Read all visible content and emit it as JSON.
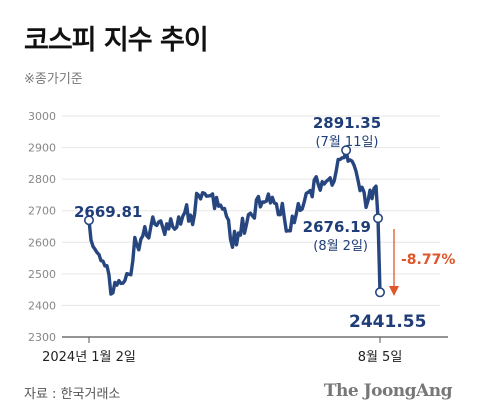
{
  "title": "코스피 지수 추이",
  "subtitle": "※종가기준",
  "source": "자료 : 한국거래소",
  "logo": "The JoongAng",
  "colors": {
    "line": "#27467f",
    "annotation": "#1f3d78",
    "change": "#e0562a",
    "grid": "#e6e6e6"
  },
  "chart_data": {
    "type": "line",
    "ylim": [
      2300,
      3000
    ],
    "yticks": [
      2300,
      2400,
      2500,
      2600,
      2700,
      2800,
      2900,
      3000
    ],
    "xtick_labels": [
      "2024년 1월 2일",
      "8월 5일"
    ],
    "x": [
      "2024-01-02",
      "2024-01-03",
      "2024-01-04",
      "2024-01-05",
      "2024-01-08",
      "2024-01-09",
      "2024-01-10",
      "2024-01-11",
      "2024-01-12",
      "2024-01-15",
      "2024-01-16",
      "2024-01-17",
      "2024-01-18",
      "2024-01-19",
      "2024-01-22",
      "2024-01-23",
      "2024-01-24",
      "2024-01-25",
      "2024-01-26",
      "2024-01-29",
      "2024-01-30",
      "2024-01-31",
      "2024-02-01",
      "2024-02-02",
      "2024-02-05",
      "2024-02-06",
      "2024-02-07",
      "2024-02-08",
      "2024-02-13",
      "2024-02-14",
      "2024-02-15",
      "2024-02-16",
      "2024-02-19",
      "2024-02-20",
      "2024-02-21",
      "2024-02-22",
      "2024-02-23",
      "2024-02-26",
      "2024-02-27",
      "2024-02-28",
      "2024-02-29",
      "2024-03-04",
      "2024-03-05",
      "2024-03-06",
      "2024-03-07",
      "2024-03-08",
      "2024-03-11",
      "2024-03-12",
      "2024-03-13",
      "2024-03-14",
      "2024-03-15",
      "2024-03-18",
      "2024-03-19",
      "2024-03-20",
      "2024-03-21",
      "2024-03-22",
      "2024-03-25",
      "2024-03-26",
      "2024-03-27",
      "2024-03-28",
      "2024-03-29",
      "2024-04-01",
      "2024-04-02",
      "2024-04-03",
      "2024-04-04",
      "2024-04-05",
      "2024-04-08",
      "2024-04-09",
      "2024-04-11",
      "2024-04-12",
      "2024-04-15",
      "2024-04-16",
      "2024-04-17",
      "2024-04-18",
      "2024-04-19",
      "2024-04-22",
      "2024-04-23",
      "2024-04-24",
      "2024-04-25",
      "2024-04-26",
      "2024-04-29",
      "2024-04-30",
      "2024-05-02",
      "2024-05-03",
      "2024-05-07",
      "2024-05-08",
      "2024-05-09",
      "2024-05-10",
      "2024-05-13",
      "2024-05-14",
      "2024-05-16",
      "2024-05-17",
      "2024-05-20",
      "2024-05-21",
      "2024-05-22",
      "2024-05-23",
      "2024-05-24",
      "2024-05-27",
      "2024-05-28",
      "2024-05-29",
      "2024-05-30",
      "2024-05-31",
      "2024-06-03",
      "2024-06-04",
      "2024-06-05",
      "2024-06-07",
      "2024-06-10",
      "2024-06-11",
      "2024-06-12",
      "2024-06-13",
      "2024-06-14",
      "2024-06-17",
      "2024-06-18",
      "2024-06-19",
      "2024-06-20",
      "2024-06-21",
      "2024-06-24",
      "2024-06-25",
      "2024-06-26",
      "2024-06-27",
      "2024-06-28",
      "2024-07-01",
      "2024-07-02",
      "2024-07-03",
      "2024-07-04",
      "2024-07-05",
      "2024-07-08",
      "2024-07-09",
      "2024-07-10",
      "2024-07-11",
      "2024-07-12",
      "2024-07-15",
      "2024-07-16",
      "2024-07-17",
      "2024-07-18",
      "2024-07-19",
      "2024-07-22",
      "2024-07-23",
      "2024-07-24",
      "2024-07-25",
      "2024-07-26",
      "2024-07-29",
      "2024-07-30",
      "2024-07-31",
      "2024-08-01",
      "2024-08-02",
      "2024-08-05"
    ],
    "values": [
      2669.81,
      2607.31,
      2587.02,
      2578.08,
      2567.82,
      2561.24,
      2541.98,
      2540.27,
      2525.05,
      2525.99,
      2497.59,
      2435.9,
      2440.04,
      2472.74,
      2464.35,
      2478.61,
      2469.69,
      2470.34,
      2478.56,
      2500.65,
      2498.81,
      2497.09,
      2542.46,
      2615.31,
      2591.31,
      2576.2,
      2609.58,
      2620.32,
      2649.64,
      2620.42,
      2613.8,
      2648.76,
      2680.26,
      2657.79,
      2653.31,
      2664.27,
      2667.7,
      2647.08,
      2625.05,
      2658.38,
      2642.36,
      2674.27,
      2649.4,
      2641.49,
      2647.62,
      2680.35,
      2657.62,
      2681.81,
      2693.57,
      2718.76,
      2666.84,
      2685.84,
      2656.17,
      2690.14,
      2754.86,
      2748.56,
      2737.57,
      2757.09,
      2755.11,
      2745.82,
      2746.63,
      2747.86,
      2753.16,
      2706.97,
      2742.0,
      2714.21,
      2717.65,
      2705.16,
      2706.96,
      2681.82,
      2670.43,
      2609.63,
      2584.18,
      2634.7,
      2591.86,
      2629.44,
      2623.02,
      2675.75,
      2628.62,
      2656.33,
      2687.44,
      2692.06,
      2683.65,
      2676.63,
      2734.36,
      2745.05,
      2712.14,
      2727.63,
      2727.21,
      2730.34,
      2753.0,
      2724.62,
      2742.14,
      2724.18,
      2721.81,
      2687.6,
      2687.6,
      2722.99,
      2677.3,
      2635.44,
      2636.52,
      2636.52,
      2682.52,
      2662.1,
      2689.5,
      2722.67,
      2701.17,
      2705.94,
      2728.17,
      2754.89,
      2758.42,
      2763.92,
      2744.1,
      2797.33,
      2807.63,
      2784.06,
      2764.73,
      2792.05,
      2784.26,
      2792.68,
      2797.82,
      2804.31,
      2780.86,
      2794.01,
      2824.94,
      2862.23,
      2862.6,
      2867.38,
      2867.99,
      2891.35,
      2857.0,
      2860.92,
      2856.82,
      2843.69,
      2824.35,
      2795.46,
      2763.51,
      2774.29,
      2758.71,
      2710.65,
      2731.9,
      2765.06,
      2738.19,
      2770.69,
      2777.68,
      2676.19,
      2441.55
    ]
  },
  "annotations": {
    "start_value": "2669.81",
    "peak_value": "2891.35",
    "peak_date": "(7월 11일)",
    "prev_value": "2676.19",
    "prev_date": "(8월 2일)",
    "end_value": "2441.55",
    "change": "-8.77%"
  }
}
